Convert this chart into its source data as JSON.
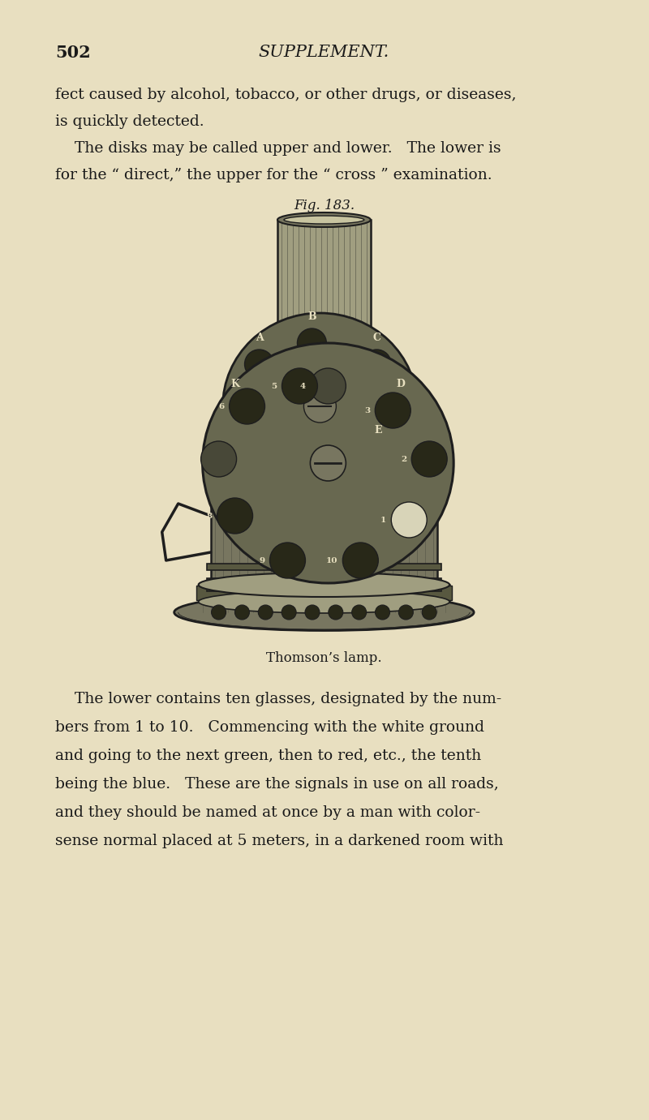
{
  "background_color": "#e8dfc0",
  "page_number": "502",
  "header": "SUPPLEMENT.",
  "text_color": "#1a1a1a",
  "para1_line1": "fect caused by alcohol, tobacco, or other drugs, or diseases,",
  "para1_line2": "is quickly detected.",
  "para2_line1": "    The disks may be called upper and lower.   The lower is",
  "para2_line2": "for the “ direct,” the upper for the “ cross ” examination.",
  "fig_label": "Fig. 183.",
  "caption": "Thomson’s lamp.",
  "body_line1": "    The lower contains ten glasses, designated by the num-",
  "body_line2": "bers from 1 to 10.   Commencing with the white ground",
  "body_line3": "and going to the next green, then to red, etc., the tenth",
  "body_line4": "being the blue.   These are the signals in use on all roads,",
  "body_line5": "and they should be named at once by a man with color-",
  "body_line6": "sense normal placed at 5 meters, in a darkened room with",
  "dark": "#1e1e1e",
  "metal_light": "#a09e80",
  "metal_med": "#787660",
  "metal_dark": "#585840",
  "disk_color": "#686850",
  "dot_dark": "#282818",
  "dot_med": "#484838"
}
